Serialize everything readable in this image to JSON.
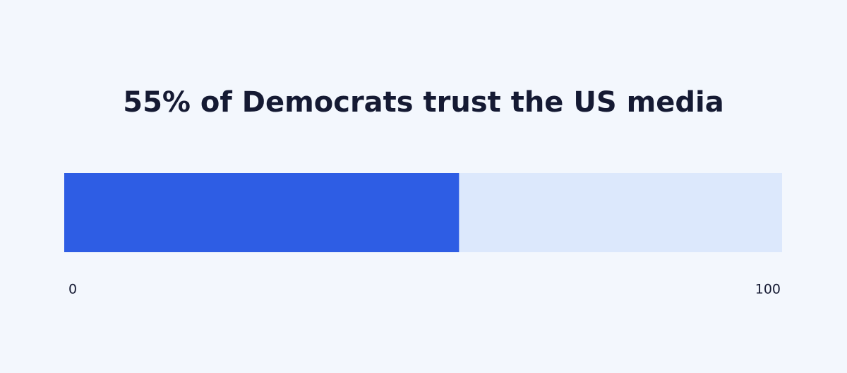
{
  "chart_data": {
    "type": "progress",
    "title": "55% of Democrats trust the US media",
    "values": [
      55
    ],
    "xlim": [
      0,
      100
    ],
    "xticks": [
      0,
      100
    ],
    "color": "#2e5de4",
    "track_color": "#dce8fc"
  }
}
